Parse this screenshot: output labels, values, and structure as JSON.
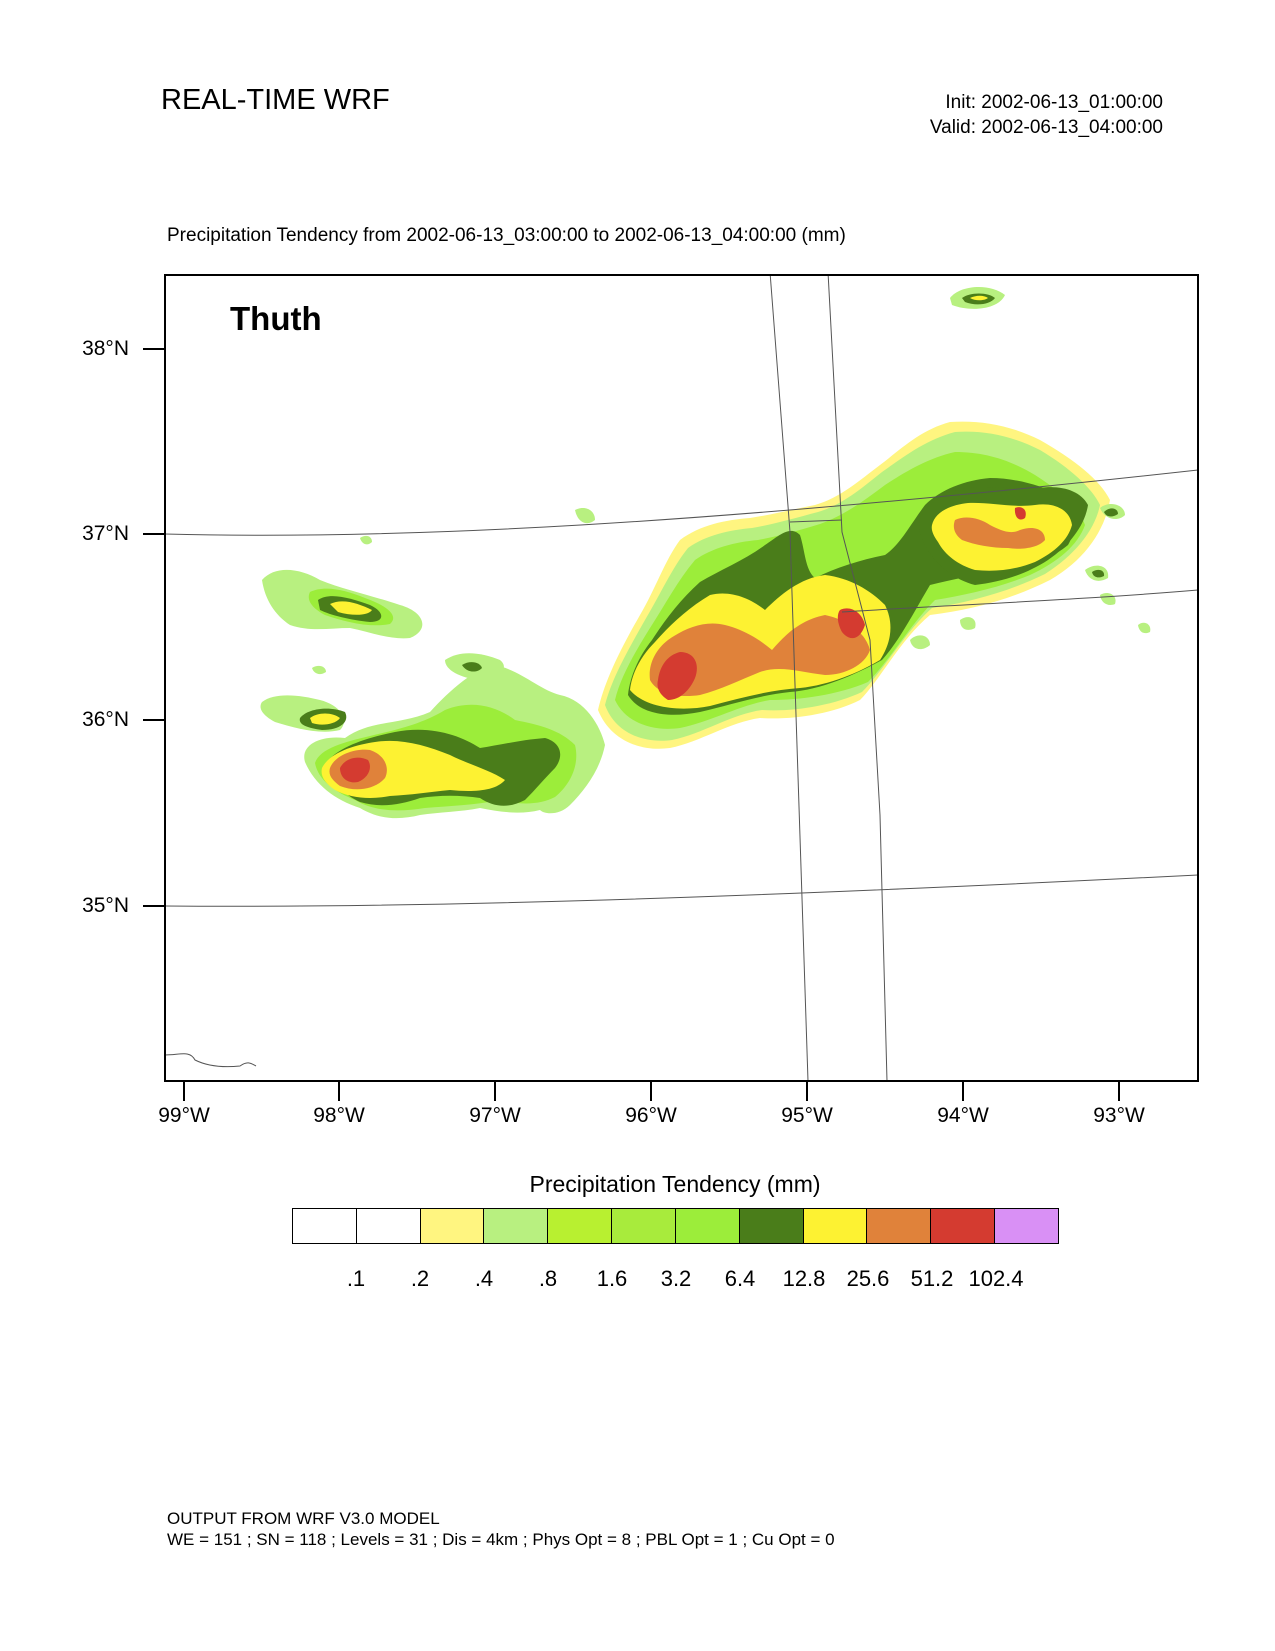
{
  "header": {
    "title": "REAL-TIME WRF",
    "init": "Init: 2002-06-13_01:00:00",
    "valid": "Valid: 2002-06-13_04:00:00"
  },
  "map": {
    "title": "Precipitation Tendency from 2002-06-13_03:00:00 to 2002-06-13_04:00:00   (mm)",
    "panel_label": "Thuth",
    "lat_ticks": [
      "38°N",
      "37°N",
      "36°N",
      "35°N"
    ],
    "lon_ticks": [
      "99°W",
      "98°W",
      "97°W",
      "96°W",
      "95°W",
      "94°W",
      "93°W"
    ]
  },
  "legend": {
    "title": "Precipitation Tendency  (mm)",
    "labels": [
      ".1",
      ".2",
      ".4",
      ".8",
      "1.6",
      "3.2",
      "6.4",
      "12.8",
      "25.6",
      "51.2",
      "102.4"
    ],
    "colors": [
      "#ffffff",
      "#ffffff",
      "#fff580",
      "#b8f080",
      "#b8f030",
      "#a8eb3c",
      "#9ced3a",
      "#4a7d1a",
      "#fdf232",
      "#e0823a",
      "#d43b30",
      "#d990f5"
    ]
  },
  "footer": {
    "line1": "OUTPUT FROM WRF V3.0 MODEL",
    "line2": "WE = 151 ; SN = 118 ; Levels = 31 ; Dis = 4km ; Phys Opt = 8 ; PBL Opt = 1 ; Cu Opt = 0"
  }
}
